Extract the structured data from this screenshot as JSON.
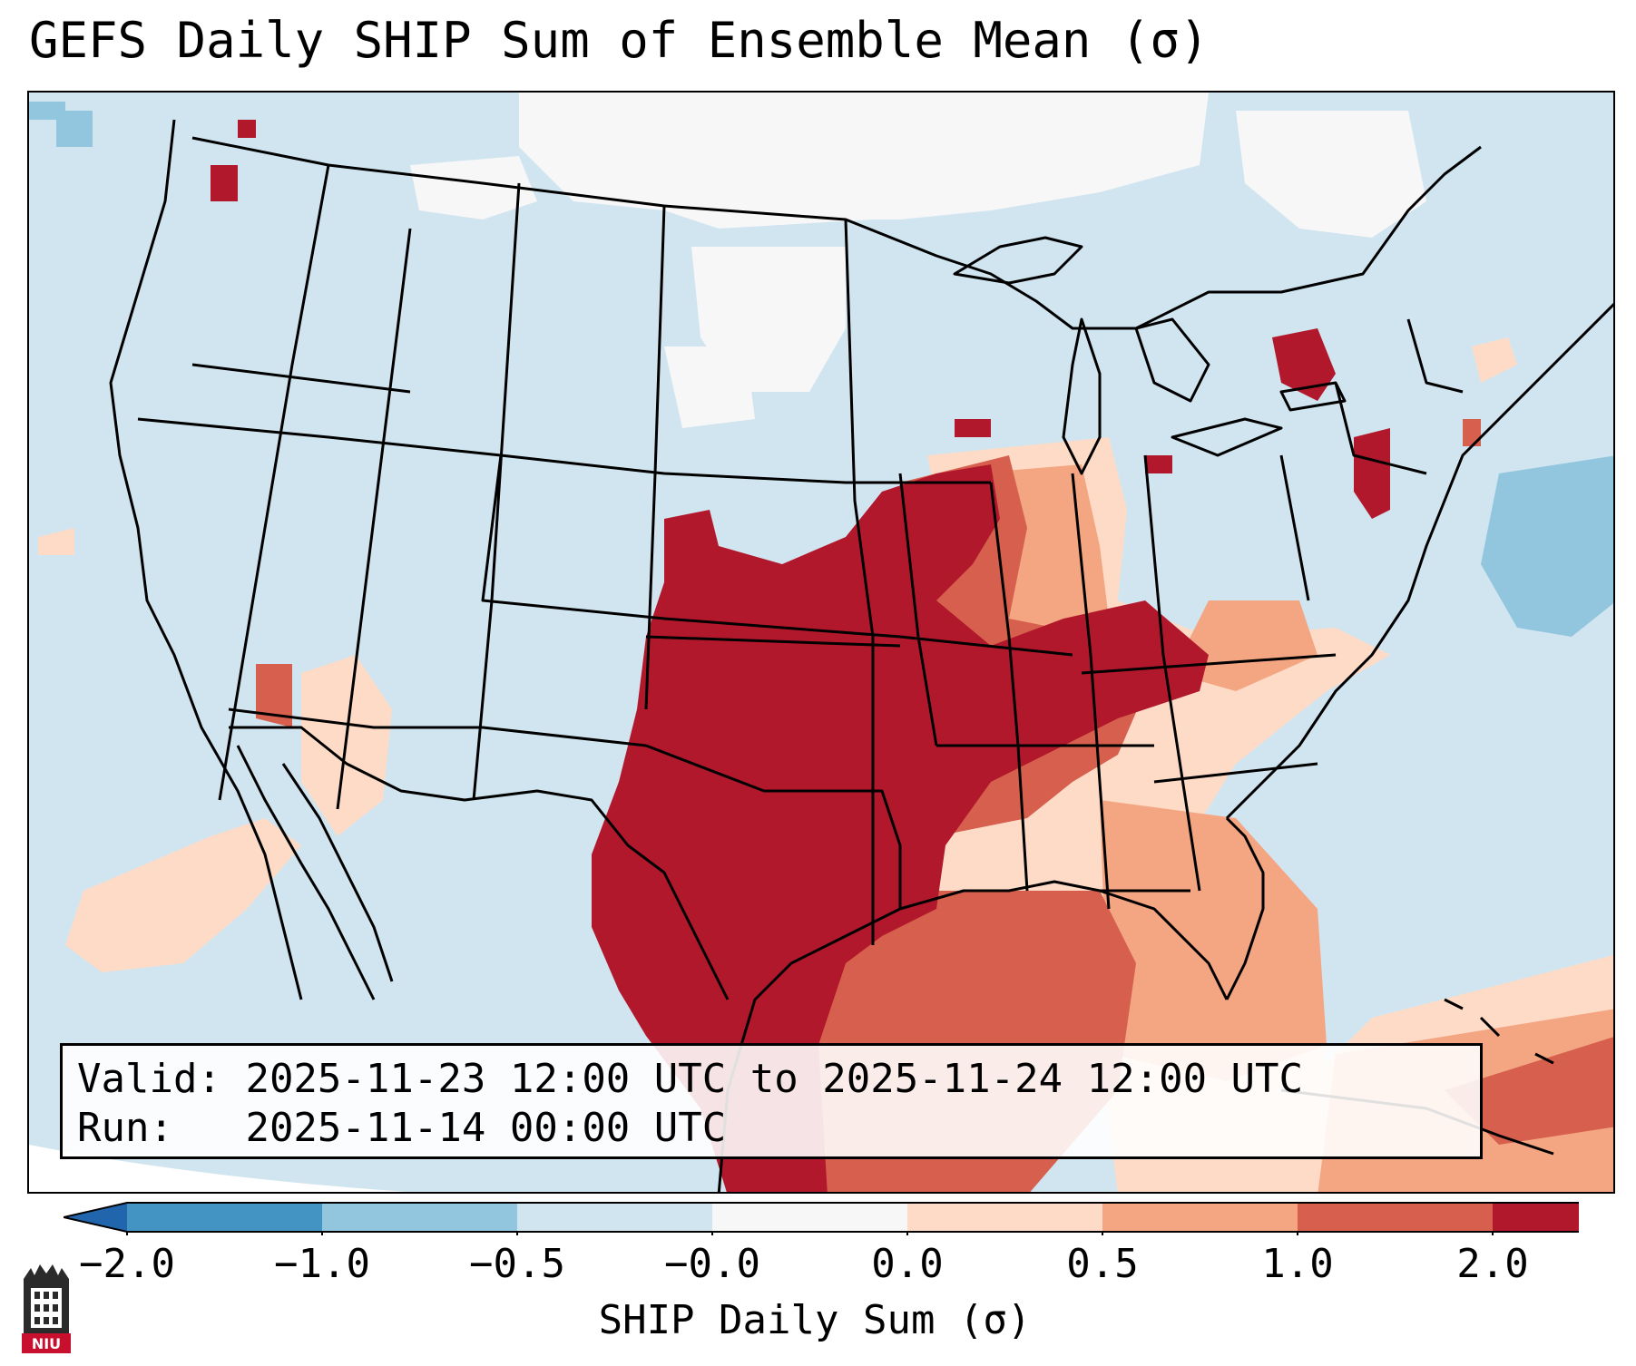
{
  "title": "GEFS Daily SHIP Sum of Ensemble Mean (σ)",
  "info_box": {
    "valid_key": "Valid:",
    "valid_value": "2025-11-23 12:00 UTC to 2025-11-24 12:00 UTC",
    "run_key": "Run:",
    "run_value": "2025-11-14 00:00 UTC"
  },
  "colorbar": {
    "label": "SHIP Daily Sum (σ)",
    "bounds": [
      -2.0,
      -1.0,
      -0.5,
      -0.0,
      0.0,
      0.5,
      1.0,
      2.0
    ],
    "tick_labels": [
      "−2.0",
      "−1.0",
      "−0.5",
      "−0.0",
      "0.0",
      "0.5",
      "1.0",
      "2.0"
    ],
    "colors": [
      "#4393c3",
      "#92c5de",
      "#d1e5f0",
      "#f7f7f7",
      "#fddbc7",
      "#f4a582",
      "#d6604d",
      "#b2182b"
    ],
    "extend": "both",
    "under_color": "#2166ac",
    "over_color": "#b2182b"
  },
  "map": {
    "projection": "Lambert Conformal",
    "region": "Contiguous United States",
    "background_color": "#d1e5f0",
    "highlight_region": "Southern Plains, Lower Mississippi Valley and Tennessee Valley (values ≥ 2.0)"
  },
  "logo": {
    "text": "NIU"
  }
}
